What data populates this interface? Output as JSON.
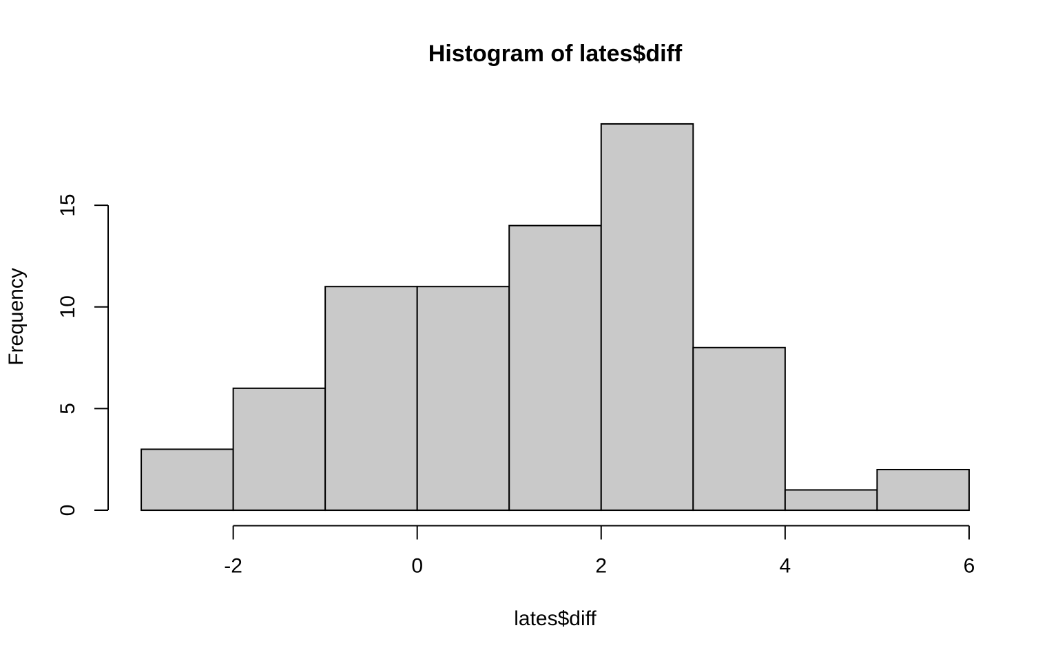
{
  "chart_data": {
    "type": "histogram",
    "title": "Histogram of lates$diff",
    "x_label": "lates$diff",
    "y_label": "Frequency",
    "bins": [
      -3,
      -2,
      -1,
      0,
      1,
      2,
      3,
      4,
      5,
      6
    ],
    "values": [
      3,
      6,
      11,
      11,
      14,
      19,
      8,
      1,
      2
    ],
    "color": "#c9c9c9",
    "xlim": [
      -3.36,
      6.36
    ],
    "ylim": [
      -0.76,
      19.76
    ],
    "xticks": [
      -2,
      0,
      2,
      4,
      6
    ],
    "yticks": [
      0,
      5,
      10,
      15
    ]
  }
}
